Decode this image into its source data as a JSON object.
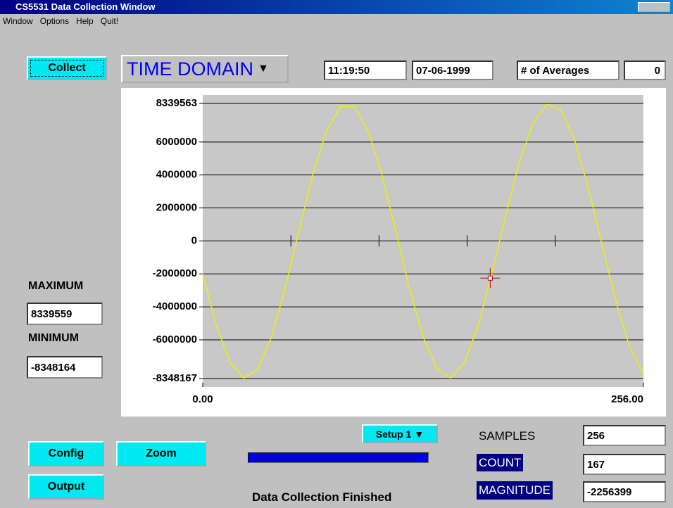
{
  "window": {
    "title": "CS5531 Data Collection Window"
  },
  "menu": [
    "Window",
    "Options",
    "Help",
    "Quit!"
  ],
  "buttons": {
    "collect": "Collect",
    "config": "Config",
    "zoom": "Zoom",
    "output": "Output",
    "setup": "Setup 1"
  },
  "mode": "TIME DOMAIN",
  "header": {
    "time": "11:19:50",
    "date": "07-06-1999",
    "averages_label": "# of Averages",
    "averages_value": "0"
  },
  "stats": {
    "max_label": "MAXIMUM",
    "max_value": "8339559",
    "min_label": "MINIMUM",
    "min_value": "-8348164"
  },
  "readout": {
    "samples_label": "SAMPLES",
    "samples_value": "256",
    "count_label": "COUNT",
    "count_value": "167",
    "magnitude_label": "MAGNITUDE",
    "magnitude_value": "-2256399"
  },
  "status": "Data Collection Finished",
  "chart_data": {
    "type": "line",
    "x": [
      0,
      8,
      16,
      24,
      32,
      40,
      48,
      56,
      64,
      72,
      80,
      88,
      96,
      104,
      112,
      120,
      128,
      136,
      144,
      152,
      160,
      168,
      176,
      184,
      192,
      200,
      208,
      216,
      224,
      232,
      240,
      248,
      256
    ],
    "series": [
      {
        "color": "#f0f000",
        "values": [
          -1980000,
          -5151000,
          -7401000,
          -8328000,
          -7766000,
          -5818000,
          -2821000,
          668000,
          4051000,
          6700000,
          8156000,
          8152000,
          6694000,
          4044000,
          665000,
          -2829000,
          -5823000,
          -7770000,
          -8327000,
          -7398000,
          -5144000,
          -1972000,
          1554000,
          4797000,
          7182000,
          8296000,
          7933000,
          6142000,
          3213000,
          -229000,
          -3657000,
          -6426000,
          -8049000
        ]
      }
    ],
    "xlim": [
      0,
      256
    ],
    "xticks": [
      {
        "value": 0,
        "label": "0.00"
      },
      {
        "value": 256,
        "label": "256.00"
      }
    ],
    "zero_line_ticks": [
      51.2,
      102.4,
      153.6,
      204.8
    ],
    "ylim": [
      -8348167,
      8339563
    ],
    "yticks": [
      8339563,
      6000000,
      4000000,
      2000000,
      0,
      -2000000,
      -4000000,
      -6000000,
      -8348167
    ],
    "grid": true,
    "cursor": {
      "x": 167,
      "y": -2256399,
      "color": "#b00000"
    }
  }
}
